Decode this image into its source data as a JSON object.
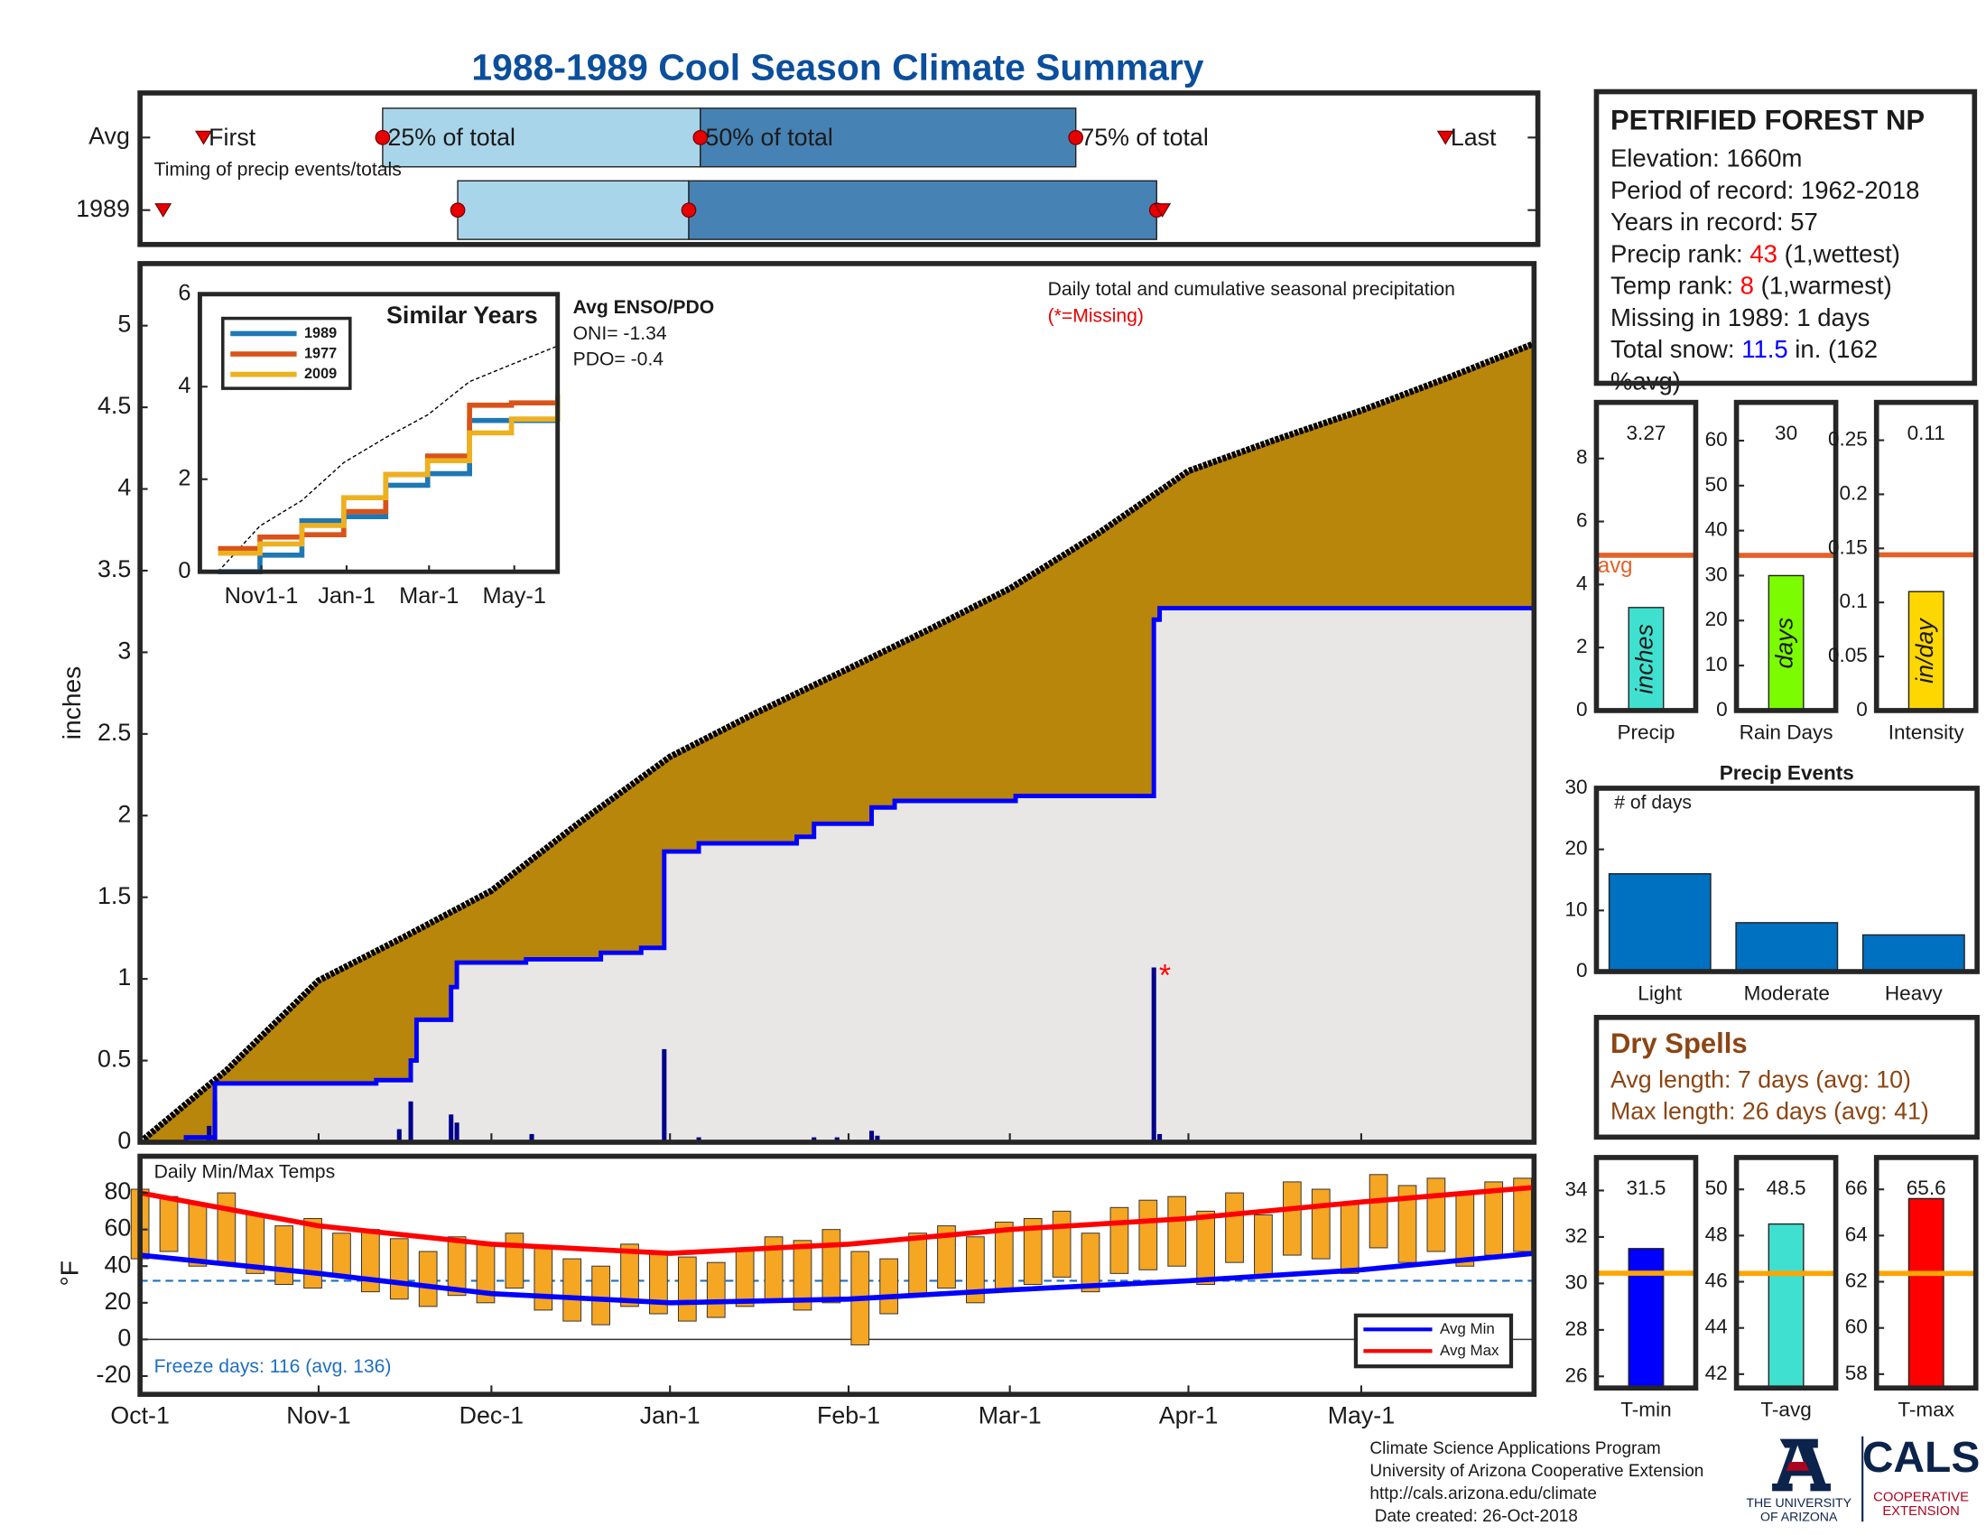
{
  "title": "1988-1989 Cool Season Climate Summary",
  "chart_data": [
    {
      "type": "timing",
      "xlim": [
        0,
        242
      ],
      "annotation": "Timing of precip events/totals",
      "marker_labels": [
        "First",
        "25% of total",
        "50% of total",
        "75% of total",
        "Last"
      ],
      "colors": [
        "#a9d5ea",
        "#4682b4"
      ],
      "marker_color": "#e60000",
      "series": [
        {
          "name": "Avg",
          "values": [
            11,
            42,
            97,
            162,
            226
          ]
        },
        {
          "name": "1989",
          "values": [
            4,
            55,
            95,
            176,
            177
          ]
        }
      ]
    },
    {
      "type": "cumulative",
      "ylabel": "inches",
      "annotation": "Daily total and cumulative seasonal precipitation",
      "missing_note": "(*=Missing)",
      "enso": [
        "Avg ENSO/PDO",
        "ONI= -1.34",
        "PDO= -0.4"
      ],
      "xlim": [
        0,
        242
      ],
      "ylim": [
        0,
        5.38
      ],
      "yticks": [
        0,
        0.5,
        1,
        1.5,
        2,
        2.5,
        3,
        3.5,
        4,
        4.5,
        5
      ],
      "average": {
        "color": "#b8860b",
        "line_color": "#000000",
        "x": [
          0,
          15,
          31,
          46,
          61,
          76,
          92,
          107,
          123,
          137,
          151,
          166,
          182,
          197,
          212,
          227,
          242
        ],
        "values": [
          0,
          0.44,
          0.99,
          1.26,
          1.54,
          1.95,
          2.36,
          2.63,
          2.9,
          3.14,
          3.39,
          3.72,
          4.11,
          4.3,
          4.48,
          4.68,
          4.89
        ]
      },
      "season": {
        "color": "#0000ff",
        "fill": "#e8e7e6",
        "x": [
          0,
          8,
          13,
          41,
          47,
          48,
          54,
          55,
          67,
          80,
          87,
          91,
          97,
          114,
          117,
          127,
          131,
          152,
          176,
          177,
          242
        ],
        "values": [
          0,
          0.03,
          0.36,
          0.38,
          0.5,
          0.75,
          0.95,
          1.1,
          1.12,
          1.16,
          1.19,
          1.78,
          1.83,
          1.87,
          1.95,
          2.05,
          2.09,
          2.12,
          3.2,
          3.27,
          3.27
        ]
      },
      "daily": {
        "color": "#00008b",
        "x": [
          8,
          12,
          13,
          45,
          47,
          54,
          55,
          68,
          91,
          97,
          117,
          121,
          127,
          128,
          176,
          177
        ],
        "values": [
          0.04,
          0.1,
          0.25,
          0.08,
          0.25,
          0.17,
          0.12,
          0.05,
          0.57,
          0.03,
          0.03,
          0.03,
          0.07,
          0.04,
          1.07,
          0.05
        ]
      },
      "missing": {
        "label": "*",
        "color": "#ff0000",
        "x": 176
      }
    },
    {
      "type": "line",
      "title": "Similar Years",
      "legend": "upper left",
      "xlim": [
        -13,
        243
      ],
      "xticks": [
        {
          "value": 31,
          "label": "Nov1-1"
        },
        {
          "value": 92,
          "label": "Jan-1"
        },
        {
          "value": 151,
          "label": "Mar-1"
        },
        {
          "value": 212,
          "label": "May-1"
        }
      ],
      "ylim": [
        0,
        6
      ],
      "yticks": [
        0,
        2,
        4,
        6
      ],
      "x": [
        0,
        30,
        60,
        90,
        120,
        150,
        180,
        210,
        243
      ],
      "series": [
        {
          "name": "1989",
          "color": "#1f77b4",
          "values": [
            0,
            0.36,
            1.1,
            1.19,
            1.87,
            2.12,
            3.27,
            3.27,
            3.27
          ]
        },
        {
          "name": "1977",
          "color": "#d95319",
          "values": [
            0.5,
            0.75,
            0.8,
            1.3,
            2.1,
            2.5,
            3.6,
            3.65,
            3.66
          ]
        },
        {
          "name": "2009",
          "color": "#edb120",
          "values": [
            0.4,
            0.6,
            1.0,
            1.6,
            2.1,
            2.4,
            3.0,
            3.3,
            3.83
          ]
        }
      ],
      "average": {
        "color": "#000000",
        "values": [
          0,
          0.99,
          1.54,
          2.36,
          2.9,
          3.39,
          4.11,
          4.48,
          4.88
        ]
      }
    },
    {
      "type": "range",
      "ylabel": "°F",
      "annotation": "Daily Min/Max Temps",
      "note": "Freeze days: 116 (avg. 136)",
      "xlim": [
        0,
        242
      ],
      "xticks": [
        {
          "value": 0,
          "label": "Oct-1"
        },
        {
          "value": 31,
          "label": "Nov-1"
        },
        {
          "value": 61,
          "label": "Dec-1"
        },
        {
          "value": 92,
          "label": "Jan-1"
        },
        {
          "value": 123,
          "label": "Feb-1"
        },
        {
          "value": 151,
          "label": "Mar-1"
        },
        {
          "value": 182,
          "label": "Apr-1"
        },
        {
          "value": 212,
          "label": "May-1"
        }
      ],
      "ylim": [
        -30,
        100
      ],
      "yticks": [
        -20,
        0,
        20,
        40,
        60,
        80
      ],
      "freeze_line": 32,
      "freeze_color": "#1f6fbf",
      "legend": "lower right",
      "daily": {
        "color": "#f5a623",
        "x": [
          0,
          5,
          10,
          15,
          20,
          25,
          30,
          35,
          40,
          45,
          50,
          55,
          60,
          65,
          70,
          75,
          80,
          85,
          90,
          95,
          100,
          105,
          110,
          115,
          120,
          125,
          130,
          135,
          140,
          145,
          150,
          155,
          160,
          165,
          170,
          175,
          180,
          185,
          190,
          195,
          200,
          205,
          210,
          215,
          220,
          225,
          230,
          235,
          240
        ],
        "high": [
          82,
          78,
          74,
          80,
          68,
          62,
          66,
          58,
          60,
          55,
          48,
          56,
          52,
          58,
          50,
          44,
          40,
          52,
          48,
          45,
          42,
          50,
          56,
          54,
          60,
          48,
          44,
          58,
          62,
          56,
          64,
          66,
          70,
          58,
          72,
          76,
          78,
          70,
          80,
          68,
          86,
          82,
          74,
          90,
          84,
          88,
          80,
          86,
          88
        ],
        "low": [
          44,
          48,
          40,
          42,
          36,
          30,
          28,
          34,
          26,
          22,
          18,
          24,
          20,
          28,
          16,
          10,
          8,
          18,
          14,
          10,
          12,
          18,
          22,
          16,
          20,
          -3,
          14,
          24,
          28,
          20,
          26,
          30,
          34,
          26,
          36,
          38,
          40,
          30,
          42,
          34,
          46,
          44,
          36,
          50,
          42,
          48,
          40,
          46,
          48
        ]
      },
      "series": [
        {
          "name": "Avg Min",
          "color": "#0000ff",
          "x": [
            0,
            31,
            61,
            92,
            123,
            151,
            182,
            212,
            242
          ],
          "values": [
            46,
            36,
            25,
            20,
            22,
            27,
            32,
            38,
            47
          ]
        },
        {
          "name": "Avg Max",
          "color": "#ff0000",
          "x": [
            0,
            31,
            61,
            92,
            123,
            151,
            182,
            212,
            242
          ],
          "values": [
            80,
            62,
            52,
            47,
            52,
            60,
            66,
            75,
            83
          ]
        }
      ]
    },
    {
      "type": "bar",
      "categories": [
        "Precip"
      ],
      "values": [
        3.27
      ],
      "color": "#40e0d0",
      "bar_label": "inches",
      "ylim": [
        0,
        9.78
      ],
      "yticks": [
        0,
        2,
        4,
        6,
        8
      ],
      "average": 4.93,
      "average_label": "avg",
      "average_color": "#e2622a"
    },
    {
      "type": "bar",
      "categories": [
        "Rain Days"
      ],
      "values": [
        30
      ],
      "color": "#7cfc00",
      "bar_label": "days",
      "ylim": [
        0,
        68.5
      ],
      "yticks": [
        0,
        10,
        20,
        30,
        40,
        50,
        60
      ],
      "average": 34.5,
      "average_color": "#e2622a"
    },
    {
      "type": "bar",
      "categories": [
        "Intensity"
      ],
      "values": [
        0.11
      ],
      "color": "#ffd700",
      "bar_label": "in/day",
      "ylim": [
        0,
        0.285
      ],
      "yticks": [
        0,
        0.05,
        0.1,
        0.15,
        0.2,
        0.25
      ],
      "average": 0.144,
      "average_color": "#e2622a"
    },
    {
      "type": "bar",
      "title": "Precip Events",
      "annotation": "# of days",
      "categories": [
        "Light",
        "Moderate",
        "Heavy"
      ],
      "values": [
        16,
        8,
        6
      ],
      "color": "#0070c0",
      "ylim": [
        0,
        30
      ],
      "yticks": [
        0,
        10,
        20,
        30
      ]
    },
    {
      "type": "bar",
      "categories": [
        "T-min"
      ],
      "values": [
        31.5
      ],
      "color": "#0000ff",
      "ylim": [
        25.5,
        35.42
      ],
      "yticks": [
        26,
        28,
        30,
        32,
        34
      ],
      "average": 30.44,
      "average_color": "#ffa500"
    },
    {
      "type": "bar",
      "categories": [
        "T-avg"
      ],
      "values": [
        48.5
      ],
      "color": "#40e0d0",
      "ylim": [
        41.4,
        51.38
      ],
      "yticks": [
        42,
        44,
        46,
        48,
        50
      ],
      "average": 46.36,
      "average_color": "#ffa500"
    },
    {
      "type": "bar",
      "categories": [
        "T-max"
      ],
      "values": [
        65.6
      ],
      "color": "#ff0000",
      "ylim": [
        57.4,
        67.38
      ],
      "yticks": [
        58,
        60,
        62,
        64,
        66
      ],
      "average": 62.36,
      "average_color": "#ffa500"
    }
  ],
  "station": {
    "name": "PETRIFIED FOREST NP",
    "lines": [
      {
        "text": [
          "Elevation: 1660m"
        ]
      },
      {
        "text": [
          "Period of record: 1962-2018"
        ]
      },
      {
        "text": [
          "Years in record: 57"
        ]
      },
      {
        "text": [
          "Precip rank: ",
          "43",
          " (1,wettest)"
        ],
        "color": "#ff0000"
      },
      {
        "text": [
          "Temp rank: ",
          "8",
          " (1,warmest)"
        ],
        "color": "#ff0000"
      },
      {
        "text": [
          "Missing in 1989: 1 days"
        ]
      },
      {
        "text": [
          "Total snow: ",
          "11.5",
          " in. (162"
        ],
        "color": "#0000ff"
      },
      {
        "text": [
          "%avg)"
        ]
      }
    ]
  },
  "dry_spells": {
    "title": "Dry Spells",
    "color": "#8b4513",
    "lines": [
      "Avg length: 7 days (avg: 10)",
      "Max length: 26 days (avg: 41)"
    ]
  },
  "footer": {
    "lines": [
      "Climate Science Applications Program",
      "University of Arizona Cooperative Extension",
      "http://cals.arizona.edu/climate",
      " Date created: 26-Oct-2018"
    ],
    "university": [
      "THE UNIVERSITY",
      "OF ARIZONA"
    ],
    "cals": "CALS",
    "extension": [
      "COOPERATIVE",
      "EXTENSION"
    ]
  }
}
